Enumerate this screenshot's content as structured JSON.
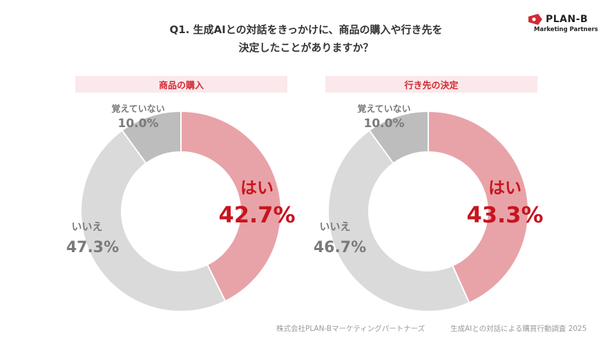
{
  "title": {
    "line1": "Q1. 生成AIとの対話をきっかけに、商品の購入や行き先を",
    "line2": "決定したことがありますか？"
  },
  "logo": {
    "name": "PLAN-B",
    "tagline": "Marketing Partners"
  },
  "footer": {
    "company": "株式会社PLAN-Bマーケティングパートナーズ",
    "survey": "生成AIとの対話による購買行動調査 2025"
  },
  "colors": {
    "yes": "#e8a3a8",
    "no": "#dadada",
    "unsure": "#bdbdbd",
    "accent": "#c8141e",
    "header_bg": "#fbe8ea"
  },
  "chart_data": [
    {
      "type": "pie",
      "title": "商品の購入",
      "slices": [
        {
          "label": "はい",
          "value": 42.7,
          "display": "42.7%"
        },
        {
          "label": "いいえ",
          "value": 47.3,
          "display": "47.3%"
        },
        {
          "label": "覚えていない",
          "value": 10.0,
          "display": "10.0%"
        }
      ]
    },
    {
      "type": "pie",
      "title": "行き先の決定",
      "slices": [
        {
          "label": "はい",
          "value": 43.3,
          "display": "43.3%"
        },
        {
          "label": "いいえ",
          "value": 46.7,
          "display": "46.7%"
        },
        {
          "label": "覚えていない",
          "value": 10.0,
          "display": "10.0%"
        }
      ]
    }
  ]
}
